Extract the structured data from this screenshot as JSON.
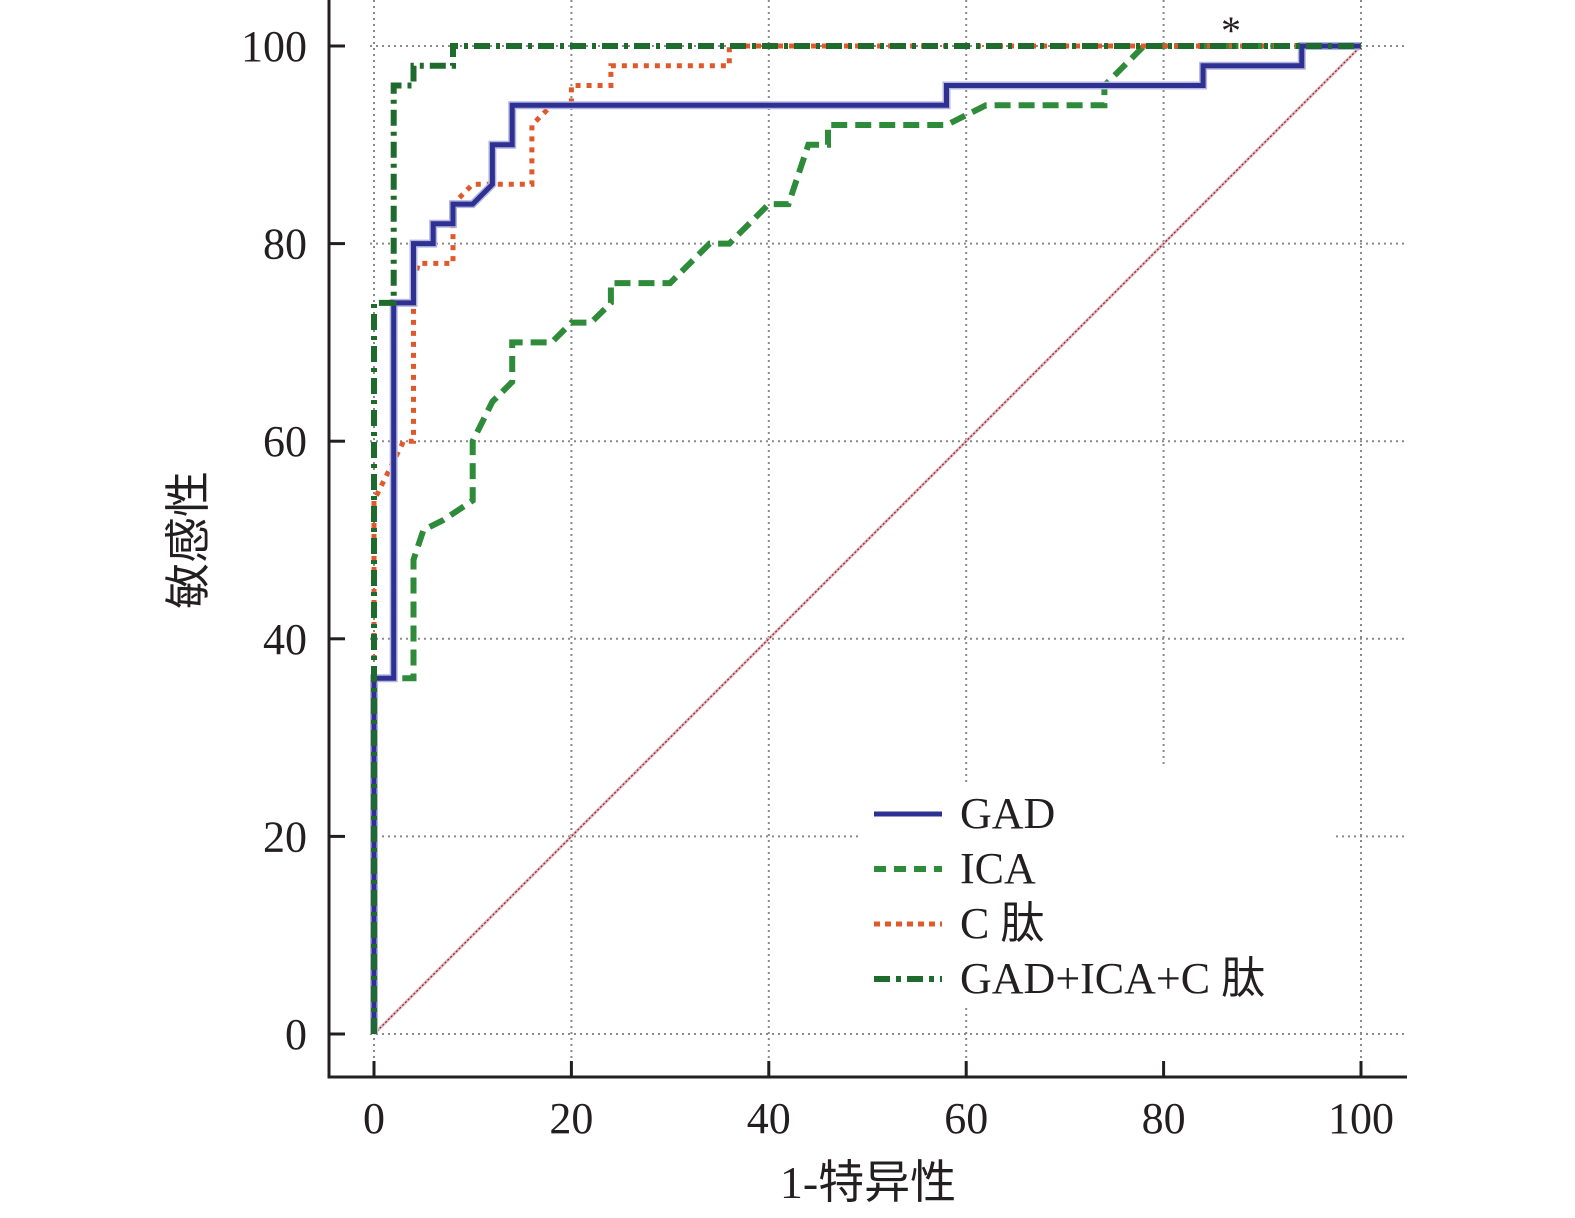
{
  "chart_data": {
    "type": "line",
    "title": "",
    "xlabel": "1-特异性",
    "ylabel": "敏感性",
    "xlim": [
      0,
      100
    ],
    "ylim": [
      0,
      100
    ],
    "xticks": [
      "0",
      "20",
      "40",
      "60",
      "80",
      "100"
    ],
    "yticks": [
      "0",
      "20",
      "40",
      "60",
      "80",
      "100"
    ],
    "xtick_values": [
      0,
      20,
      40,
      60,
      80,
      100
    ],
    "ytick_values": [
      0,
      20,
      40,
      60,
      80,
      100
    ],
    "grid": true,
    "legend_position": "bottom-right",
    "annotation": "*",
    "reference_line": {
      "name": "diagonal",
      "x": [
        0,
        100
      ],
      "y": [
        0,
        100
      ],
      "color": "#c48a8a"
    },
    "series": [
      {
        "name": "GAD",
        "style": "solid",
        "color": "#2e3192",
        "x": [
          0,
          0,
          2,
          2,
          4,
          4,
          6,
          6,
          8,
          8,
          10,
          12,
          12,
          14,
          14,
          58,
          58,
          84,
          84,
          94,
          94,
          100
        ],
        "y": [
          0,
          36,
          36,
          74,
          74,
          80,
          80,
          82,
          82,
          84,
          84,
          86,
          90,
          90,
          94,
          94,
          96,
          96,
          98,
          98,
          100,
          100
        ]
      },
      {
        "name": "ICA",
        "style": "dashed",
        "color": "#2e8b3a",
        "x": [
          0,
          0,
          4,
          4,
          5,
          7,
          10,
          10,
          12,
          14,
          14,
          18,
          20,
          22,
          24,
          24,
          30,
          34,
          36,
          40,
          42,
          44,
          46,
          46,
          58,
          62,
          74,
          74,
          78,
          100
        ],
        "y": [
          0,
          36,
          36,
          48,
          51,
          52,
          54,
          60,
          64,
          66,
          70,
          70,
          72,
          72,
          74,
          76,
          76,
          80,
          80,
          84,
          84,
          90,
          90,
          92,
          92,
          94,
          94,
          96,
          100,
          100
        ]
      },
      {
        "name": "C 肽",
        "style": "dotted",
        "color": "#e0592a",
        "x": [
          0,
          0,
          2,
          3,
          4,
          4,
          4.5,
          8,
          8,
          10,
          16,
          16,
          18,
          20,
          20,
          24,
          24,
          36,
          36,
          100
        ],
        "y": [
          0,
          54,
          58,
          60,
          60,
          76,
          78,
          78,
          84,
          86,
          86,
          92,
          94,
          94,
          96,
          96,
          98,
          98,
          100,
          100
        ]
      },
      {
        "name": "GAD+ICA+C 肽",
        "style": "dashdot",
        "color": "#1f6b2e",
        "x": [
          0,
          0,
          2,
          2,
          4,
          4,
          8,
          8,
          100
        ],
        "y": [
          0,
          74,
          74,
          96,
          96,
          98,
          98,
          100,
          100
        ]
      }
    ]
  }
}
